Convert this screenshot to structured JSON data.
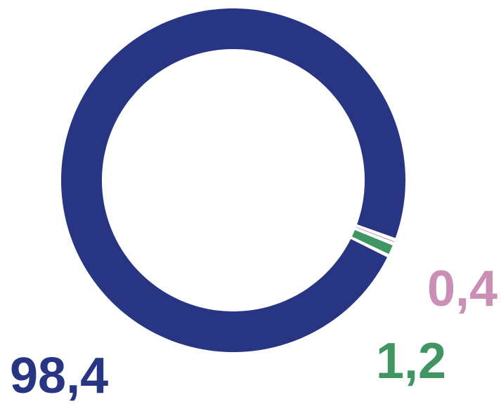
{
  "chart_data": {
    "type": "pie",
    "series": [
      {
        "label": "98,4",
        "value": 98.4,
        "color": "#283583"
      },
      {
        "label": "0,4",
        "value": 0.4,
        "color": "#c98fb5"
      },
      {
        "label": "1,2",
        "value": 1.2,
        "color": "#3f9663"
      }
    ],
    "legend": "none",
    "title": ""
  }
}
